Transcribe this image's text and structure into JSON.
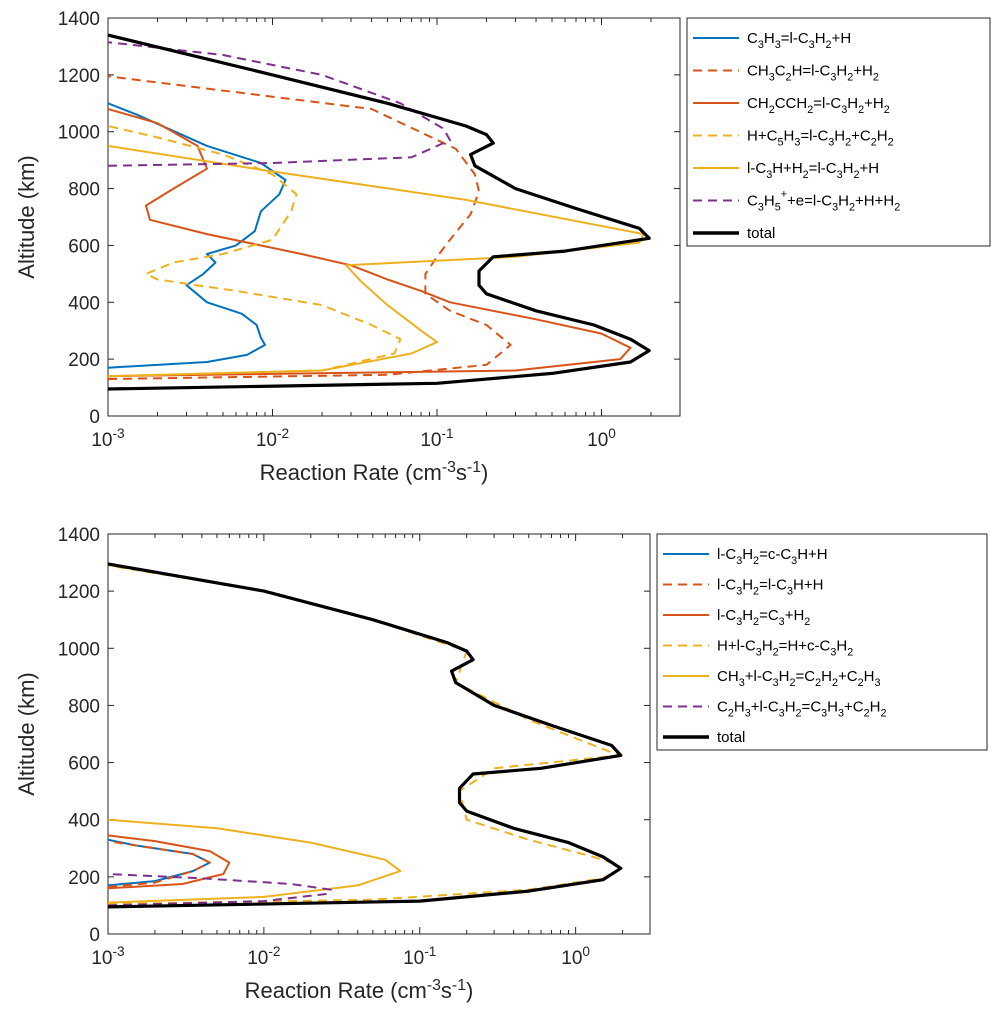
{
  "chart_data": [
    {
      "type": "line",
      "xlabel": "Reaction Rate (cm^-3 s^-1)",
      "ylabel": "Altitude (km)",
      "xscale": "log",
      "xlim": [
        0.001,
        3
      ],
      "ylim": [
        0,
        1400
      ],
      "x_ticks": [
        {
          "v": 0.001,
          "label": "10^-3"
        },
        {
          "v": 0.01,
          "label": "10^-2"
        },
        {
          "v": 0.1,
          "label": "10^-1"
        },
        {
          "v": 1,
          "label": "10^0"
        }
      ],
      "y_ticks": [
        0,
        200,
        400,
        600,
        800,
        1000,
        1200,
        1400
      ],
      "legend_position": "outside-right",
      "series": [
        {
          "name": "C3H3=l-C3H2+H",
          "color": "#0072BD",
          "dash": "solid",
          "points": [
            [
              0.001,
              170
            ],
            [
              0.004,
              190
            ],
            [
              0.007,
              215
            ],
            [
              0.009,
              250
            ],
            [
              0.0085,
              275
            ],
            [
              0.008,
              320
            ],
            [
              0.0065,
              360
            ],
            [
              0.004,
              400
            ],
            [
              0.003,
              460
            ],
            [
              0.0038,
              500
            ],
            [
              0.0045,
              540
            ],
            [
              0.004,
              570
            ],
            [
              0.006,
              600
            ],
            [
              0.0078,
              650
            ],
            [
              0.0085,
              720
            ],
            [
              0.011,
              780
            ],
            [
              0.012,
              830
            ],
            [
              0.0085,
              890
            ],
            [
              0.004,
              950
            ],
            [
              0.0015,
              1060
            ],
            [
              0.001,
              1100
            ]
          ]
        },
        {
          "name": "CH3C2H=l-C3H2+H2",
          "color": "#D95319",
          "dash": "dashed",
          "points": [
            [
              0.001,
              130
            ],
            [
              0.05,
              145
            ],
            [
              0.2,
              180
            ],
            [
              0.28,
              250
            ],
            [
              0.2,
              320
            ],
            [
              0.12,
              370
            ],
            [
              0.085,
              430
            ],
            [
              0.085,
              500
            ],
            [
              0.1,
              560
            ],
            [
              0.12,
              620
            ],
            [
              0.16,
              710
            ],
            [
              0.18,
              790
            ],
            [
              0.17,
              850
            ],
            [
              0.13,
              940
            ],
            [
              0.04,
              1080
            ],
            [
              0.001,
              1195
            ]
          ]
        },
        {
          "name": "CH2CCH2=l-C3H2+H2",
          "color": "#D95319",
          "dash": "solid",
          "points": [
            [
              0.001,
              140
            ],
            [
              0.3,
              160
            ],
            [
              1.3,
              200
            ],
            [
              1.5,
              240
            ],
            [
              1.0,
              290
            ],
            [
              0.4,
              340
            ],
            [
              0.12,
              400
            ],
            [
              0.08,
              440
            ],
            [
              0.05,
              480
            ],
            [
              0.03,
              530
            ],
            [
              0.015,
              570
            ],
            [
              0.004,
              640
            ],
            [
              0.0018,
              690
            ],
            [
              0.0017,
              740
            ],
            [
              0.0025,
              800
            ],
            [
              0.004,
              870
            ],
            [
              0.0035,
              950
            ],
            [
              0.002,
              1030
            ],
            [
              0.001,
              1080
            ]
          ]
        },
        {
          "name": "H+C5H3=l-C3H2+C2H2",
          "color": "#EDB120",
          "dash": "dashed",
          "points": [
            [
              0.001,
              140
            ],
            [
              0.02,
              160
            ],
            [
              0.055,
              220
            ],
            [
              0.06,
              270
            ],
            [
              0.04,
              320
            ],
            [
              0.02,
              390
            ],
            [
              0.006,
              440
            ],
            [
              0.002,
              480
            ],
            [
              0.0017,
              500
            ],
            [
              0.0025,
              540
            ],
            [
              0.005,
              570
            ],
            [
              0.01,
              620
            ],
            [
              0.013,
              720
            ],
            [
              0.014,
              780
            ],
            [
              0.01,
              850
            ],
            [
              0.005,
              920
            ],
            [
              0.002,
              980
            ],
            [
              0.001,
              1020
            ]
          ]
        },
        {
          "name": "l-C3H+H2=l-C3H2+H",
          "color": "#EDB120",
          "dash": "solid",
          "points": [
            [
              0.001,
              140
            ],
            [
              0.02,
              160
            ],
            [
              0.07,
              220
            ],
            [
              0.1,
              260
            ],
            [
              0.08,
              300
            ],
            [
              0.05,
              390
            ],
            [
              0.035,
              470
            ],
            [
              0.028,
              530
            ],
            [
              0.3,
              560
            ],
            [
              1.7,
              610
            ],
            [
              1.8,
              640
            ],
            [
              0.15,
              760
            ],
            [
              0.01,
              860
            ],
            [
              0.001,
              950
            ]
          ]
        },
        {
          "name": "C3H5++e=l-C3H2+H+H2",
          "color": "#7E2F8E",
          "dash": "dashed",
          "points": [
            [
              0.001,
              880
            ],
            [
              0.01,
              890
            ],
            [
              0.07,
              910
            ],
            [
              0.12,
              970
            ],
            [
              0.11,
              1010
            ],
            [
              0.06,
              1100
            ],
            [
              0.02,
              1200
            ],
            [
              0.005,
              1270
            ],
            [
              0.001,
              1315
            ]
          ]
        },
        {
          "name": "total",
          "color": "#000000",
          "dash": "solid",
          "bold": true,
          "points": [
            [
              0.001,
              95
            ],
            [
              0.1,
              115
            ],
            [
              0.5,
              150
            ],
            [
              1.5,
              190
            ],
            [
              1.95,
              230
            ],
            [
              1.5,
              270
            ],
            [
              0.9,
              320
            ],
            [
              0.4,
              370
            ],
            [
              0.2,
              430
            ],
            [
              0.18,
              460
            ],
            [
              0.18,
              510
            ],
            [
              0.22,
              560
            ],
            [
              0.6,
              580
            ],
            [
              1.95,
              625
            ],
            [
              1.7,
              660
            ],
            [
              0.7,
              730
            ],
            [
              0.3,
              800
            ],
            [
              0.17,
              880
            ],
            [
              0.16,
              920
            ],
            [
              0.22,
              960
            ],
            [
              0.2,
              990
            ],
            [
              0.15,
              1020
            ],
            [
              0.05,
              1100
            ],
            [
              0.01,
              1200
            ],
            [
              0.001,
              1340
            ]
          ]
        }
      ]
    },
    {
      "type": "line",
      "xlabel": "Reaction Rate (cm^-3 s^-1)",
      "ylabel": "Altitude (km)",
      "xscale": "log",
      "xlim": [
        0.001,
        3
      ],
      "ylim": [
        0,
        1400
      ],
      "x_ticks": [
        {
          "v": 0.001,
          "label": "10^-3"
        },
        {
          "v": 0.01,
          "label": "10^-2"
        },
        {
          "v": 0.1,
          "label": "10^-1"
        },
        {
          "v": 1,
          "label": "10^0"
        }
      ],
      "y_ticks": [
        0,
        200,
        400,
        600,
        800,
        1000,
        1200,
        1400
      ],
      "legend_position": "outside-right",
      "series": [
        {
          "name": "l-C3H2=c-C3H+H",
          "color": "#0072BD",
          "dash": "solid",
          "points": [
            [
              0.001,
              170
            ],
            [
              0.002,
              185
            ],
            [
              0.0035,
              220
            ],
            [
              0.0045,
              250
            ],
            [
              0.0035,
              280
            ],
            [
              0.0015,
              310
            ],
            [
              0.001,
              330
            ]
          ]
        },
        {
          "name": "l-C3H2=l-C3H+H",
          "color": "#D95319",
          "dash": "dashed",
          "points": [
            [
              0.001,
              165
            ],
            [
              0.002,
              180
            ],
            [
              0.0035,
              220
            ],
            [
              0.0045,
              250
            ],
            [
              0.0035,
              280
            ],
            [
              0.0015,
              310
            ],
            [
              0.001,
              325
            ]
          ]
        },
        {
          "name": "l-C3H2=C3+H2",
          "color": "#D95319",
          "dash": "solid",
          "points": [
            [
              0.001,
              160
            ],
            [
              0.003,
              175
            ],
            [
              0.0055,
              210
            ],
            [
              0.006,
              250
            ],
            [
              0.0045,
              290
            ],
            [
              0.002,
              325
            ],
            [
              0.001,
              345
            ]
          ]
        },
        {
          "name": "H+l-C3H2=H+c-C3H2",
          "color": "#EDB120",
          "dash": "dashed",
          "points": [
            [
              0.001,
              105
            ],
            [
              0.05,
              120
            ],
            [
              0.5,
              155
            ],
            [
              1.5,
              195
            ],
            [
              1.95,
              230
            ],
            [
              1.8,
              245
            ],
            [
              1.3,
              270
            ],
            [
              0.5,
              330
            ],
            [
              0.2,
              400
            ],
            [
              0.18,
              500
            ],
            [
              0.3,
              580
            ],
            [
              1.9,
              625
            ],
            [
              0.5,
              750
            ],
            [
              0.17,
              880
            ],
            [
              0.2,
              990
            ],
            [
              0.05,
              1100
            ],
            [
              0.01,
              1200
            ],
            [
              0.001,
              1290
            ]
          ]
        },
        {
          "name": "CH3+l-C3H2=C2H2+C2H3",
          "color": "#EDB120",
          "dash": "solid",
          "points": [
            [
              0.001,
              110
            ],
            [
              0.01,
              130
            ],
            [
              0.04,
              170
            ],
            [
              0.075,
              220
            ],
            [
              0.06,
              260
            ],
            [
              0.02,
              320
            ],
            [
              0.005,
              370
            ],
            [
              0.001,
              400
            ]
          ]
        },
        {
          "name": "C2H3+l-C3H2=C3H3+C2H2",
          "color": "#7E2F8E",
          "dash": "dashed",
          "points": [
            [
              0.001,
              100
            ],
            [
              0.01,
              115
            ],
            [
              0.025,
              140
            ],
            [
              0.027,
              155
            ],
            [
              0.015,
              175
            ],
            [
              0.004,
              195
            ],
            [
              0.001,
              210
            ]
          ]
        },
        {
          "name": "total",
          "color": "#000000",
          "dash": "solid",
          "bold": true,
          "points": [
            [
              0.001,
              95
            ],
            [
              0.1,
              115
            ],
            [
              0.5,
              150
            ],
            [
              1.5,
              190
            ],
            [
              1.95,
              230
            ],
            [
              1.5,
              270
            ],
            [
              0.9,
              320
            ],
            [
              0.4,
              370
            ],
            [
              0.2,
              430
            ],
            [
              0.18,
              460
            ],
            [
              0.18,
              510
            ],
            [
              0.22,
              560
            ],
            [
              0.6,
              580
            ],
            [
              1.95,
              625
            ],
            [
              1.7,
              660
            ],
            [
              0.7,
              730
            ],
            [
              0.3,
              800
            ],
            [
              0.17,
              880
            ],
            [
              0.16,
              920
            ],
            [
              0.22,
              960
            ],
            [
              0.2,
              990
            ],
            [
              0.15,
              1020
            ],
            [
              0.05,
              1100
            ],
            [
              0.01,
              1200
            ],
            [
              0.001,
              1295
            ]
          ]
        }
      ]
    }
  ]
}
